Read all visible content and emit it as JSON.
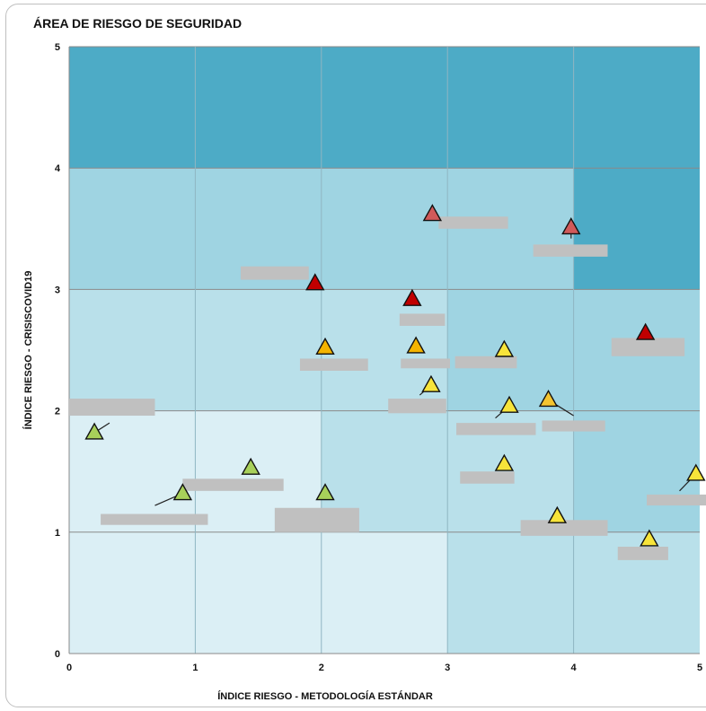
{
  "chart_data": {
    "type": "scatter",
    "title": "ÁREA DE RIESGO  DE SEGURIDAD",
    "xlabel": "ÍNDICE RIESGO - METODOLOGÍA ESTÁNDAR",
    "ylabel": "ÍNDICE RIESGO - CRISISCOVID19",
    "xlim": [
      0,
      5
    ],
    "ylim": [
      0,
      5
    ],
    "x_ticks": [
      "0",
      "1",
      "2",
      "3",
      "4",
      "5"
    ],
    "y_ticks": [
      "0",
      "1",
      "2",
      "3",
      "4",
      "5"
    ],
    "grid": true,
    "zones": [
      {
        "x": [
          0,
          5
        ],
        "y": [
          4,
          5
        ],
        "color": "#4dabc6"
      },
      {
        "x": [
          0,
          4
        ],
        "y": [
          3,
          4
        ],
        "color": "#9fd4e2"
      },
      {
        "x": [
          4,
          5
        ],
        "y": [
          3,
          4
        ],
        "color": "#4dabc6"
      },
      {
        "x": [
          0,
          3
        ],
        "y": [
          2,
          3
        ],
        "color": "#b9e0ea"
      },
      {
        "x": [
          3,
          5
        ],
        "y": [
          2,
          3
        ],
        "color": "#9fd4e2"
      },
      {
        "x": [
          0,
          2
        ],
        "y": [
          1,
          2
        ],
        "color": "#dbeff5"
      },
      {
        "x": [
          2,
          4
        ],
        "y": [
          1,
          2
        ],
        "color": "#b9e0ea"
      },
      {
        "x": [
          4,
          5
        ],
        "y": [
          1,
          2
        ],
        "color": "#9fd4e2"
      },
      {
        "x": [
          0,
          3
        ],
        "y": [
          0,
          1
        ],
        "color": "#dbeff5"
      },
      {
        "x": [
          3,
          5
        ],
        "y": [
          0,
          1
        ],
        "color": "#b9e0ea"
      }
    ],
    "points": [
      {
        "x": 0.2,
        "y": 1.82,
        "color": "#a8d05a"
      },
      {
        "x": 0.9,
        "y": 1.32,
        "color": "#a8d05a"
      },
      {
        "x": 1.44,
        "y": 1.53,
        "color": "#a8d05a"
      },
      {
        "x": 2.03,
        "y": 1.32,
        "color": "#a8d05a"
      },
      {
        "x": 1.95,
        "y": 3.05,
        "color": "#c00000"
      },
      {
        "x": 2.03,
        "y": 2.52,
        "color": "#f4b400"
      },
      {
        "x": 2.72,
        "y": 2.92,
        "color": "#c00000"
      },
      {
        "x": 2.75,
        "y": 2.53,
        "color": "#f4b400"
      },
      {
        "x": 2.87,
        "y": 2.21,
        "color": "#f7e43a"
      },
      {
        "x": 2.88,
        "y": 3.62,
        "color": "#d05a5a"
      },
      {
        "x": 3.45,
        "y": 2.5,
        "color": "#f7e43a"
      },
      {
        "x": 3.49,
        "y": 2.04,
        "color": "#f7e43a"
      },
      {
        "x": 3.45,
        "y": 1.56,
        "color": "#f7e43a"
      },
      {
        "x": 3.8,
        "y": 2.09,
        "color": "#f4c430"
      },
      {
        "x": 3.98,
        "y": 3.51,
        "color": "#d05a5a"
      },
      {
        "x": 3.87,
        "y": 1.13,
        "color": "#f7e43a"
      },
      {
        "x": 4.57,
        "y": 2.64,
        "color": "#c00000"
      },
      {
        "x": 4.6,
        "y": 0.94,
        "color": "#f7e43a"
      },
      {
        "x": 4.97,
        "y": 1.48,
        "color": "#f7e43a"
      }
    ],
    "label_boxes": [
      {
        "x": [
          0.0,
          0.68
        ],
        "y": [
          1.96,
          2.1
        ]
      },
      {
        "x": [
          0.25,
          1.1
        ],
        "y": [
          1.06,
          1.15
        ]
      },
      {
        "x": [
          0.9,
          1.7
        ],
        "y": [
          1.34,
          1.44
        ]
      },
      {
        "x": [
          1.36,
          1.9
        ],
        "y": [
          3.08,
          3.19
        ]
      },
      {
        "x": [
          1.83,
          2.37
        ],
        "y": [
          2.33,
          2.43
        ]
      },
      {
        "x": [
          1.63,
          2.3
        ],
        "y": [
          1.0,
          1.2
        ]
      },
      {
        "x": [
          2.62,
          2.98
        ],
        "y": [
          2.7,
          2.8
        ]
      },
      {
        "x": [
          2.63,
          3.02
        ],
        "y": [
          2.35,
          2.43
        ]
      },
      {
        "x": [
          2.53,
          2.99
        ],
        "y": [
          1.98,
          2.1
        ]
      },
      {
        "x": [
          2.93,
          3.48
        ],
        "y": [
          3.5,
          3.6
        ]
      },
      {
        "x": [
          3.06,
          3.55
        ],
        "y": [
          2.35,
          2.45
        ]
      },
      {
        "x": [
          3.07,
          3.7
        ],
        "y": [
          1.8,
          1.9
        ]
      },
      {
        "x": [
          3.1,
          3.53
        ],
        "y": [
          1.4,
          1.5
        ]
      },
      {
        "x": [
          3.68,
          4.27
        ],
        "y": [
          3.27,
          3.37
        ]
      },
      {
        "x": [
          3.75,
          4.25
        ],
        "y": [
          1.83,
          1.92
        ]
      },
      {
        "x": [
          3.58,
          4.27
        ],
        "y": [
          0.97,
          1.1
        ]
      },
      {
        "x": [
          4.3,
          4.88
        ],
        "y": [
          2.45,
          2.6
        ]
      },
      {
        "x": [
          4.35,
          4.75
        ],
        "y": [
          0.77,
          0.88
        ]
      },
      {
        "x": [
          4.58,
          5.1
        ],
        "y": [
          1.22,
          1.31
        ]
      }
    ],
    "leader_lines": [
      {
        "from": [
          0.2,
          1.82
        ],
        "to": [
          0.32,
          1.9
        ]
      },
      {
        "from": [
          0.9,
          1.32
        ],
        "to": [
          0.68,
          1.22
        ]
      },
      {
        "from": [
          2.87,
          2.21
        ],
        "to": [
          2.78,
          2.13
        ]
      },
      {
        "from": [
          3.49,
          2.04
        ],
        "to": [
          3.38,
          1.94
        ]
      },
      {
        "from": [
          3.8,
          2.09
        ],
        "to": [
          4.0,
          1.96
        ]
      },
      {
        "from": [
          3.98,
          3.51
        ],
        "to": [
          3.98,
          3.42
        ]
      },
      {
        "from": [
          4.97,
          1.48
        ],
        "to": [
          4.84,
          1.34
        ]
      }
    ]
  }
}
